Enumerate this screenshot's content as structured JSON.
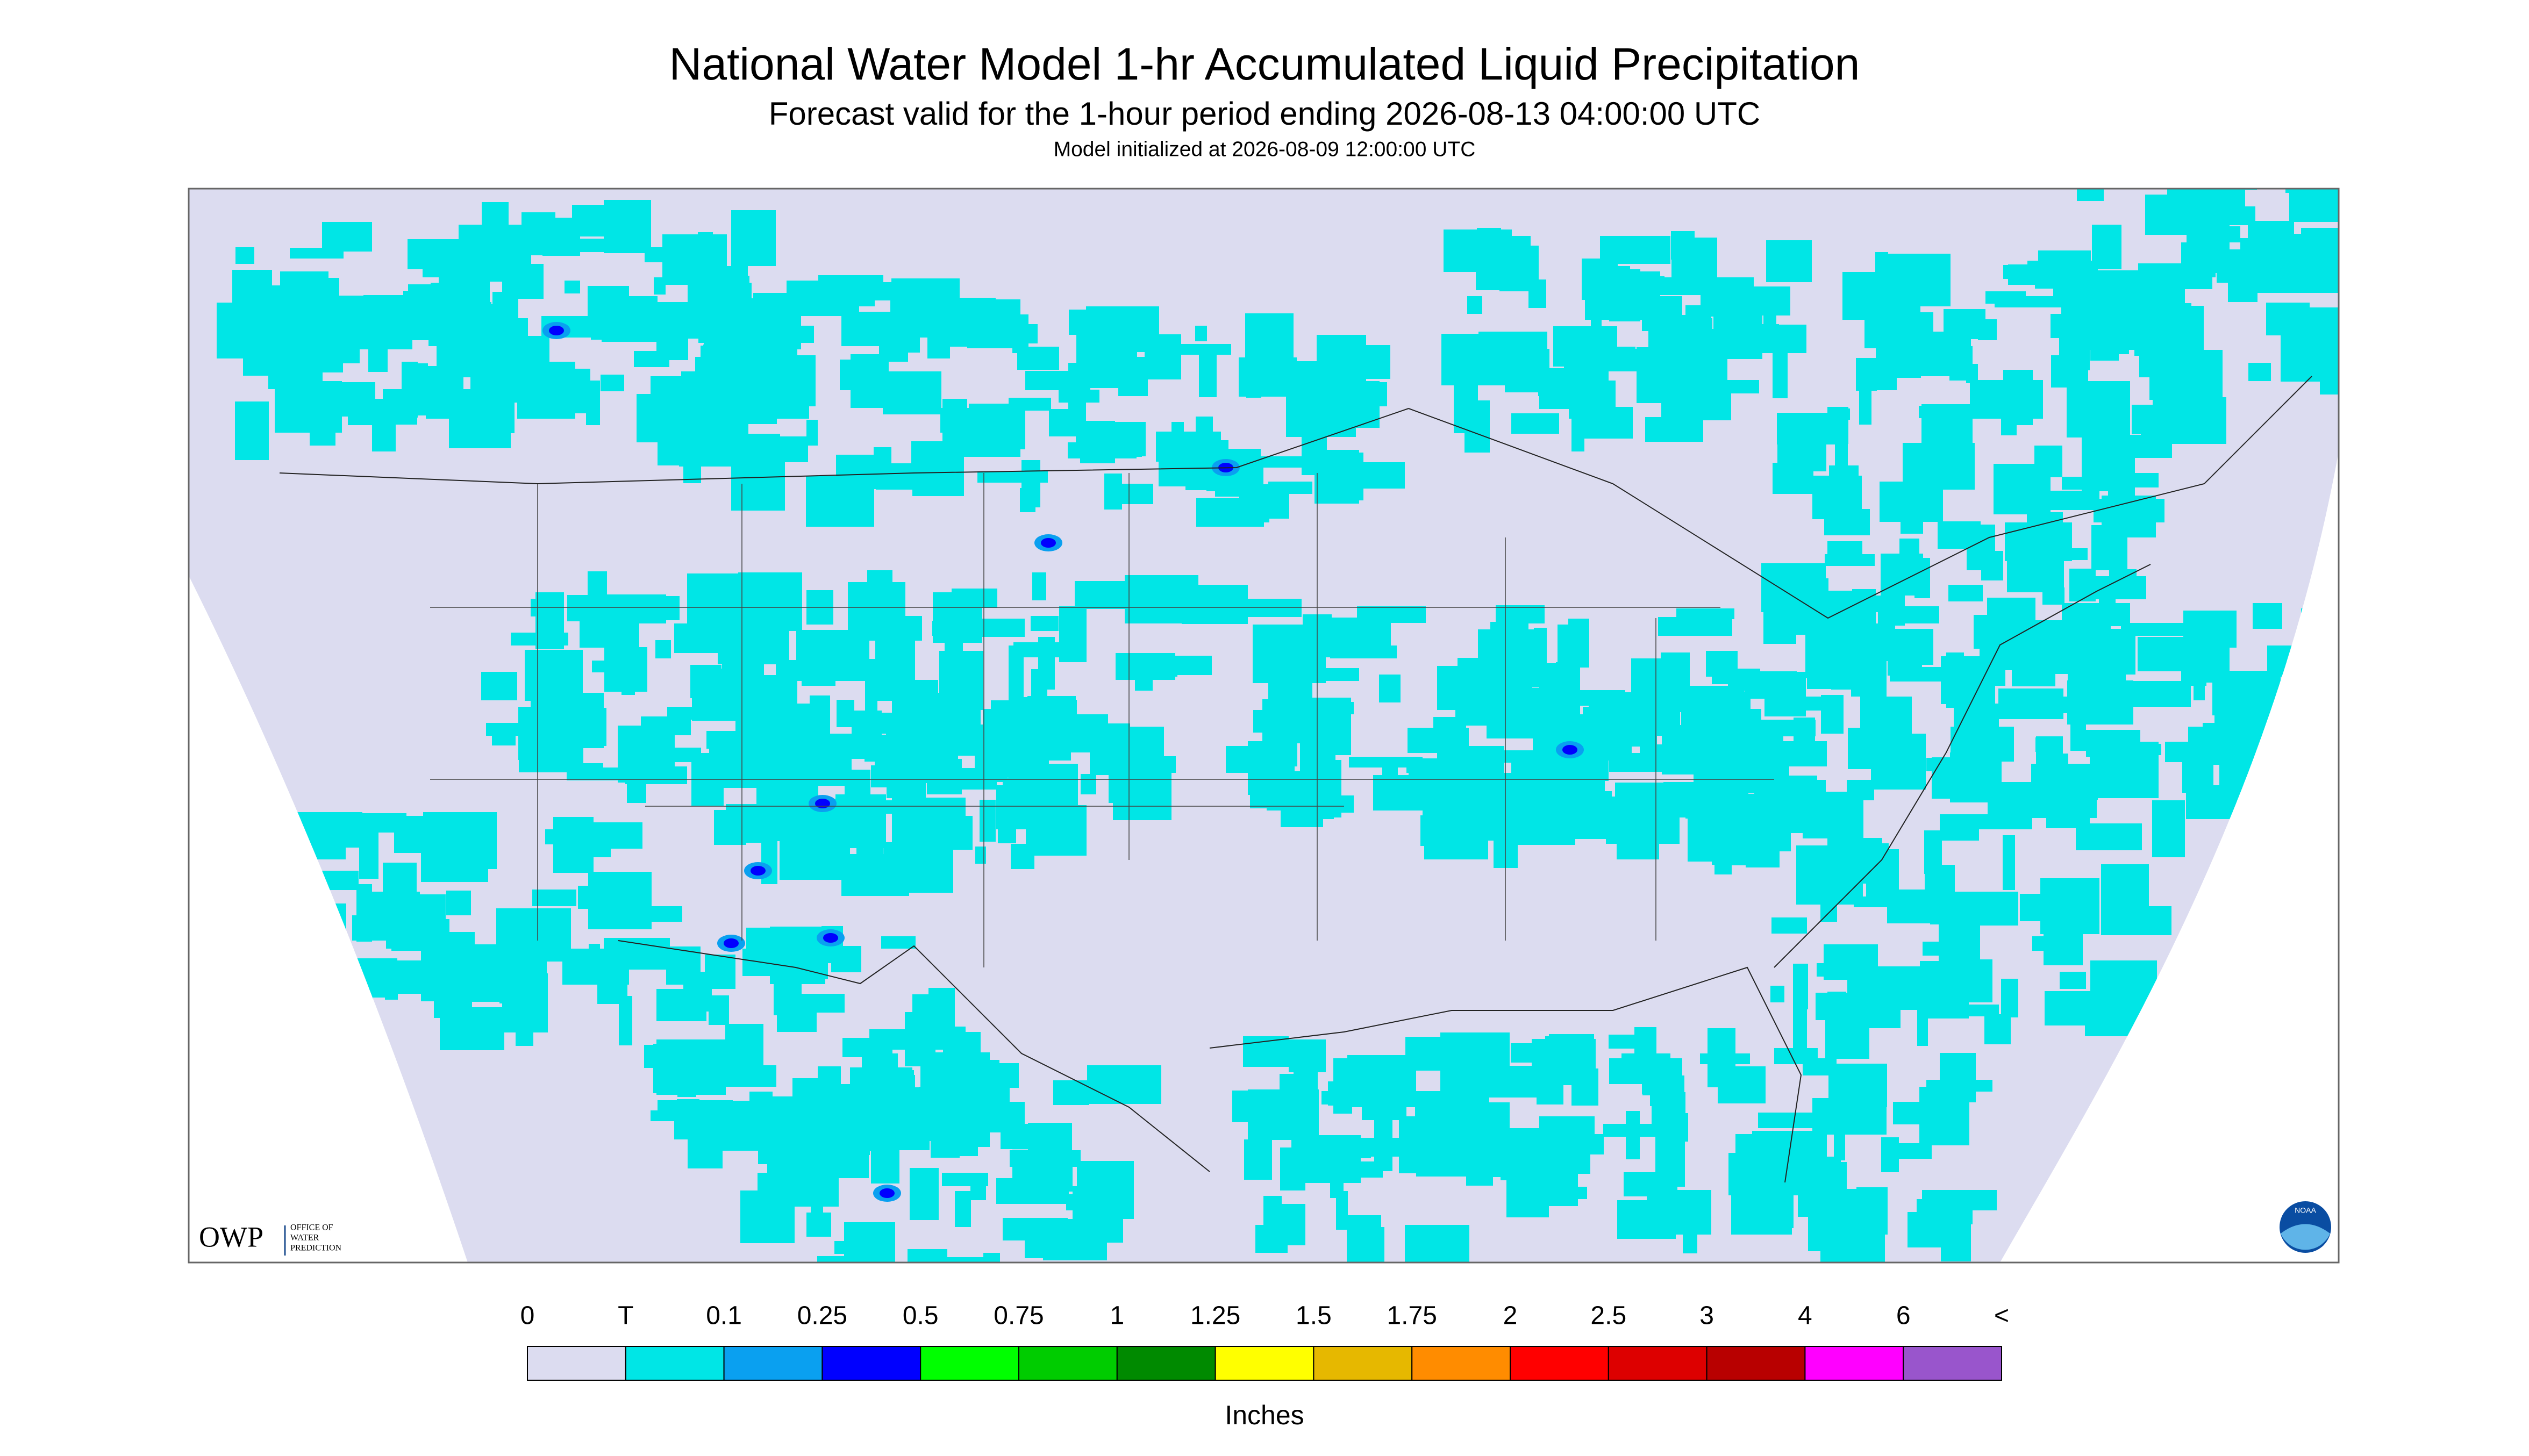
{
  "header": {
    "title": "National Water Model 1-hr Accumulated Liquid Precipitation",
    "subtitle": "Forecast valid for the 1-hour period ending 2026-08-13 04:00:00 UTC",
    "init": "Model initialized at 2026-08-09 12:00:00 UTC"
  },
  "legend": {
    "labels": [
      "0",
      "T",
      "0.1",
      "0.25",
      "0.5",
      "0.75",
      "1",
      "1.25",
      "1.5",
      "1.75",
      "2",
      "2.5",
      "3",
      "4",
      "6",
      "<"
    ],
    "colors": [
      "#dcdcf0",
      "#00e6e6",
      "#0aa0f0",
      "#0000ff",
      "#00ff00",
      "#00cc00",
      "#008a00",
      "#ffff00",
      "#e6b800",
      "#ff8c00",
      "#ff0000",
      "#dd0000",
      "#b80000",
      "#ff00ff",
      "#9955cc"
    ],
    "unit": "Inches"
  },
  "logos": {
    "owp": "OWP",
    "owp_full": [
      "OFFICE OF",
      "WATER",
      "PREDICTION"
    ],
    "noaa": "NOAA"
  }
}
